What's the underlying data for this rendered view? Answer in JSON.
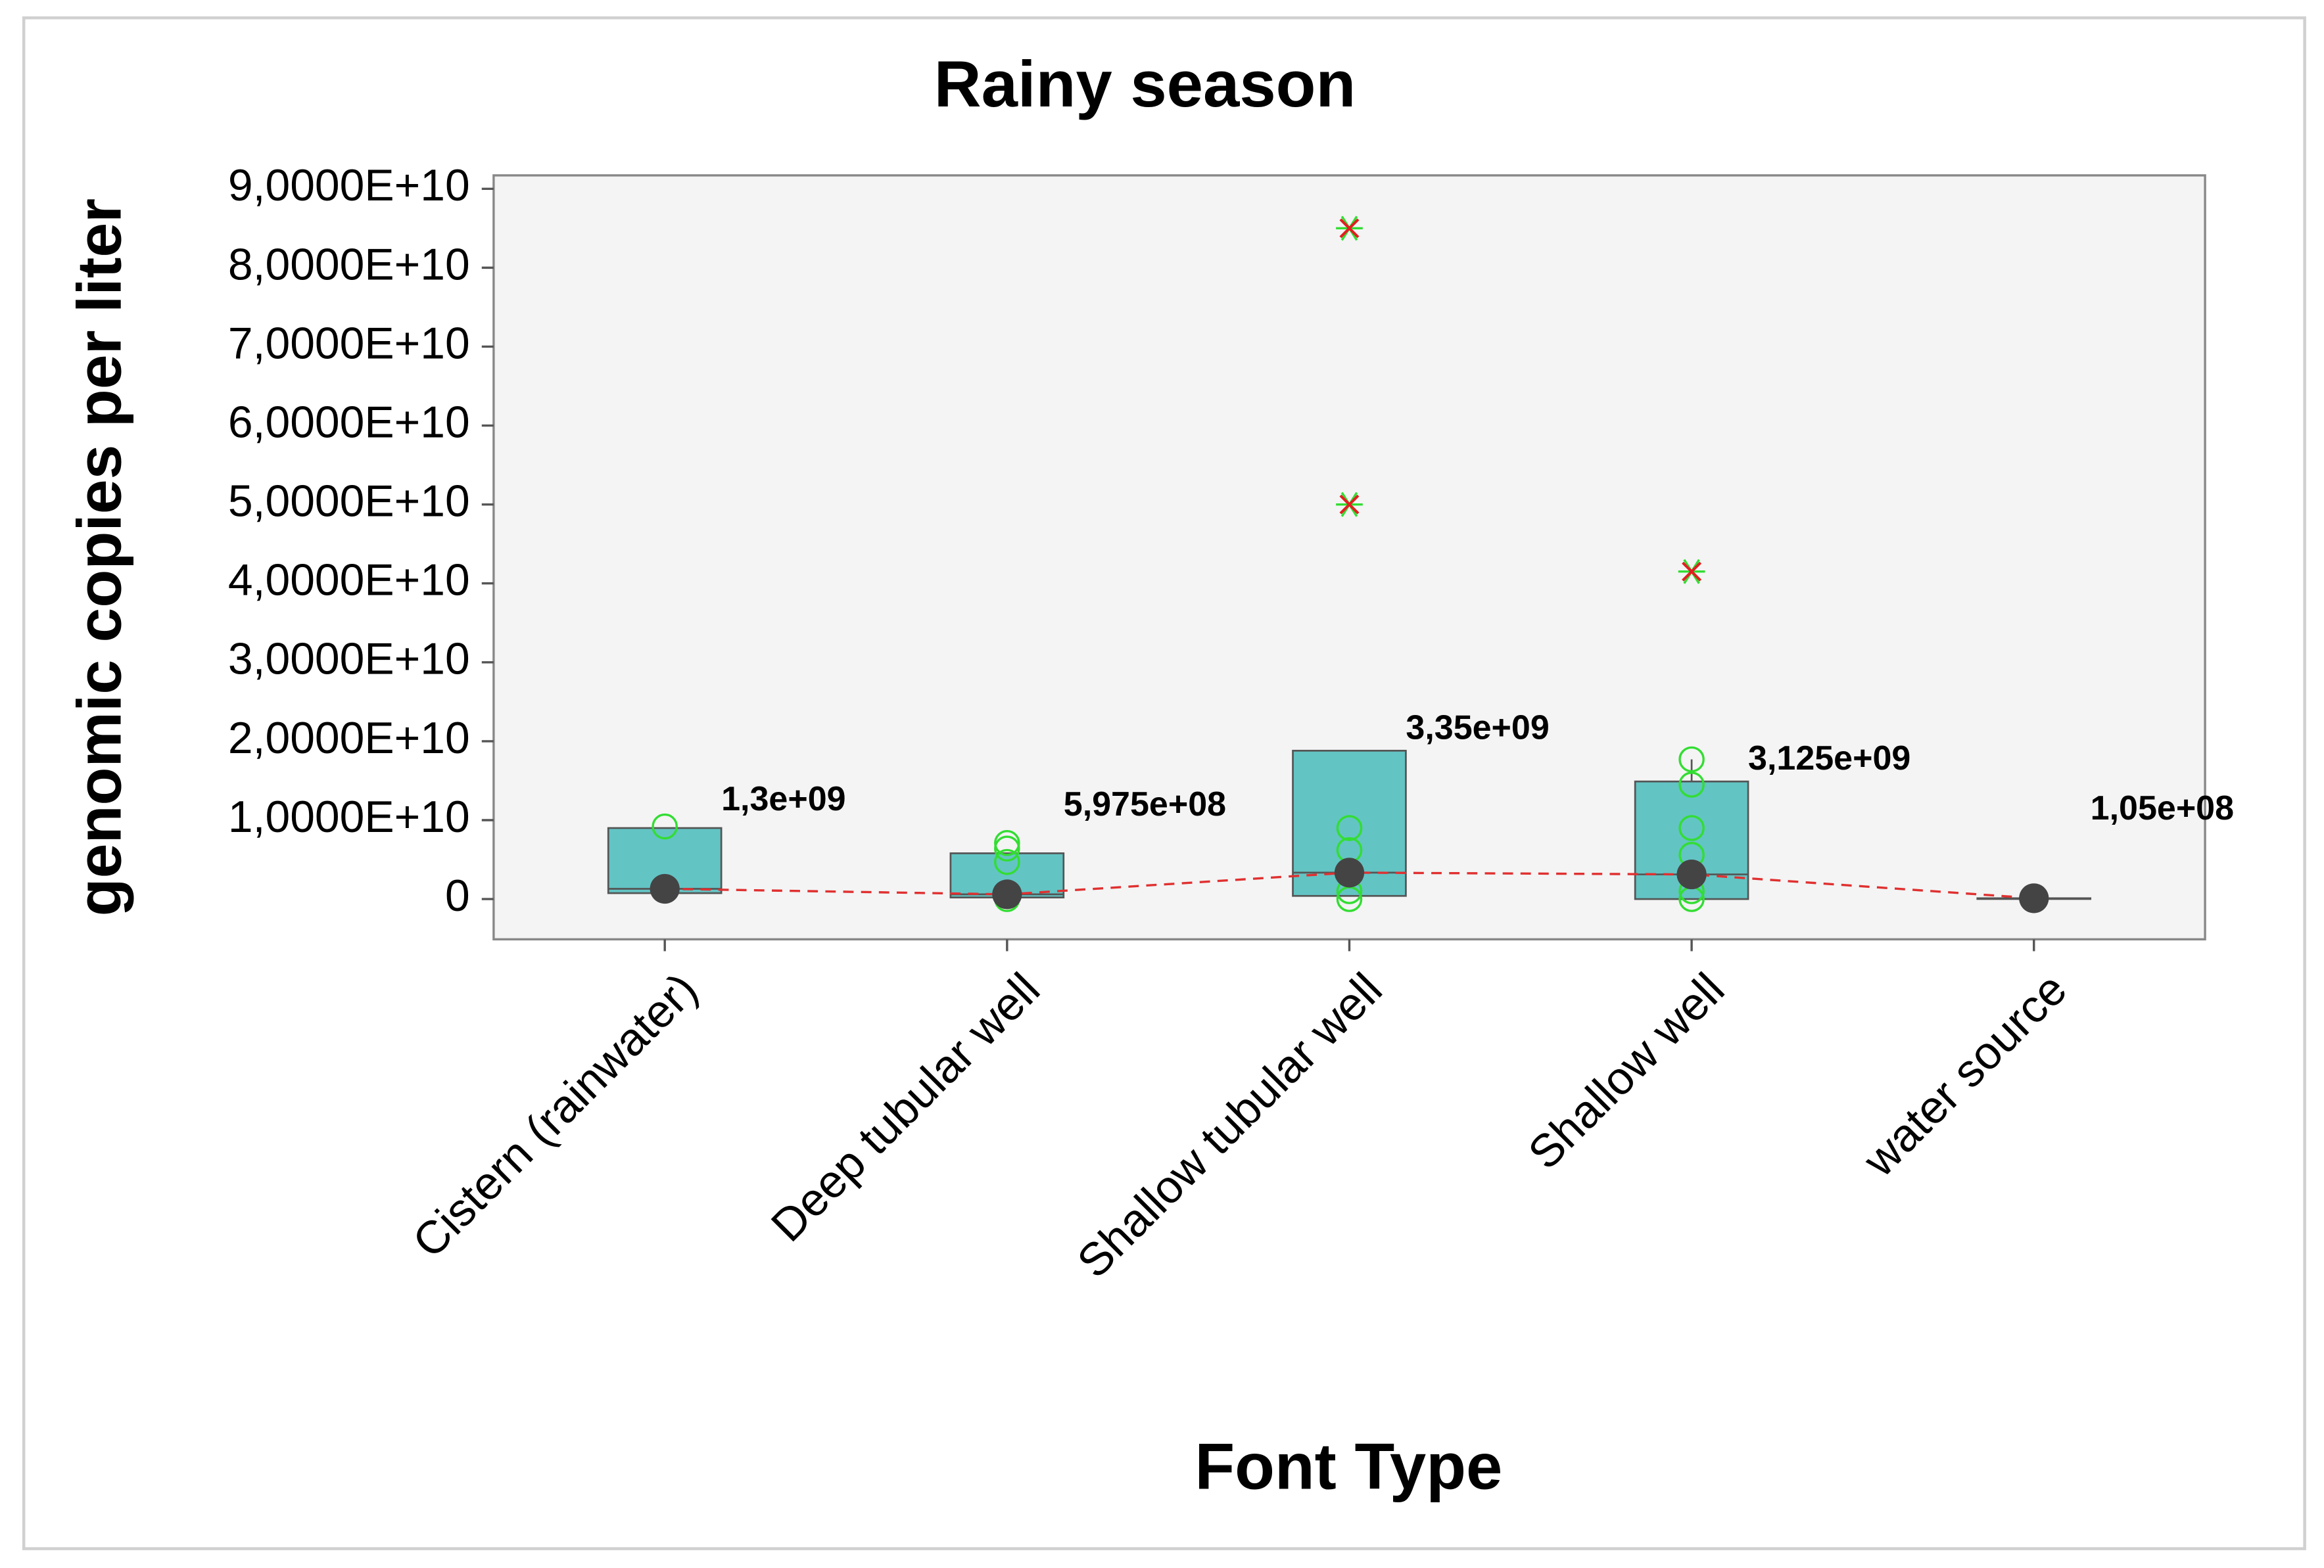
{
  "chart_data": {
    "type": "box",
    "title": "Rainy season",
    "y_label": "genomic copies per liter",
    "x_label": "Font Type",
    "categories": [
      "Cistern (rainwater)",
      "Deep tubular well",
      "Shallow tubular well",
      "Shallow well",
      "water source"
    ],
    "boxes": [
      {
        "q1": 750000000,
        "q3": 9000000000,
        "outliers": [],
        "points": [
          9200000000
        ]
      },
      {
        "q1": 200000000,
        "q3": 5800000000,
        "outliers": [],
        "points": [
          7100000000,
          6400000000,
          4700000000,
          0
        ]
      },
      {
        "q1": 400000000,
        "q3": 18800000000,
        "outliers": [
          85000000000,
          50000000000
        ],
        "points": [
          9000000000,
          6200000000,
          1000000000,
          0
        ]
      },
      {
        "q1": 0,
        "q3": 14900000000,
        "whisker_high": 17700000000,
        "outliers": [
          41500000000
        ],
        "points": [
          17700000000,
          14500000000,
          9000000000,
          5600000000,
          1000000000,
          0
        ]
      },
      {
        "q1": 105000000,
        "q3": 105000000,
        "outliers": [],
        "points": []
      }
    ],
    "medians": [
      1300000000,
      597500000,
      3350000000,
      3125000000,
      105000000
    ],
    "value_labels": [
      "1,3e+09",
      "5,975e+08",
      "3,35e+09",
      "3,125e+09",
      "1,05e+08"
    ],
    "ylim": [
      -5100000000,
      91700000000
    ],
    "yticks": [
      0,
      {
        "value": 10000000000,
        "label": "1,0000E+10"
      },
      {
        "value": 20000000000,
        "label": "2,0000E+10"
      },
      {
        "value": 30000000000,
        "label": "3,0000E+10"
      },
      {
        "value": 40000000000,
        "label": "4,0000E+10"
      },
      {
        "value": 50000000000,
        "label": "5,0000E+10"
      },
      {
        "value": 60000000000,
        "label": "6,0000E+10"
      },
      {
        "value": 70000000000,
        "label": "7,0000E+10"
      },
      {
        "value": 80000000000,
        "label": "8,0000E+10"
      },
      {
        "value": 90000000000,
        "label": "9,0000E+10"
      }
    ],
    "box_color": "#63c4c4",
    "point_color": "#33dd33",
    "outlier_color": "#e02020",
    "median_color": "#444444",
    "connect_color": "#e03030"
  }
}
